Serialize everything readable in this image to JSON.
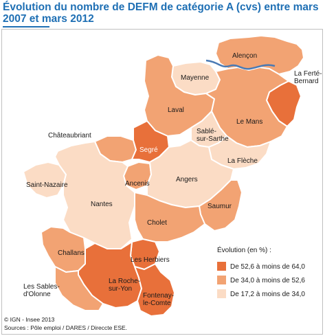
{
  "title": "Évolution du nombre de DEFM de catégorie A (cvs) entre mars 2007 et mars 2012",
  "colors": {
    "class_high": "#e8703a",
    "class_mid": "#f2a373",
    "class_low": "#fbdcc5",
    "border": "#ffffff",
    "river": "#4a7ab4",
    "title": "#1e6fb4"
  },
  "legend": {
    "title": "Évolution (en %) :",
    "items": [
      {
        "label": "De 52,6 à moins de 64,0",
        "color": "#e8703a"
      },
      {
        "label": "De 34,0 à moins de 52,6",
        "color": "#f2a373"
      },
      {
        "label": "De 17,2 à moins de 34,0",
        "color": "#fbdcc5"
      }
    ]
  },
  "zones": [
    {
      "name": "Alençon",
      "label": "Alençon",
      "class": "mid"
    },
    {
      "name": "Mayenne",
      "label": "Mayenne",
      "class": "low"
    },
    {
      "name": "La Ferté-Bernard",
      "label": "La Ferté-\nBernard",
      "class": "high"
    },
    {
      "name": "Laval",
      "label": "Laval",
      "class": "mid"
    },
    {
      "name": "Le Mans",
      "label": "Le Mans",
      "class": "mid"
    },
    {
      "name": "Sablé-sur-Sarthe",
      "label": "Sablé-\nsur-Sarthe",
      "class": "low"
    },
    {
      "name": "Châteaubriant",
      "label": "Châteaubriant",
      "class": "mid"
    },
    {
      "name": "Segré",
      "label": "Segré",
      "class": "high"
    },
    {
      "name": "La Flèche",
      "label": "La Flèche",
      "class": "low"
    },
    {
      "name": "Saint-Nazaire",
      "label": "Saint-Nazaire",
      "class": "low"
    },
    {
      "name": "Ancenis",
      "label": "Ancenis",
      "class": "mid"
    },
    {
      "name": "Angers",
      "label": "Angers",
      "class": "low"
    },
    {
      "name": "Nantes",
      "label": "Nantes",
      "class": "low"
    },
    {
      "name": "Saumur",
      "label": "Saumur",
      "class": "mid"
    },
    {
      "name": "Cholet",
      "label": "Cholet",
      "class": "mid"
    },
    {
      "name": "Challans",
      "label": "Challans",
      "class": "mid"
    },
    {
      "name": "Les Herbiers",
      "label": "Les Herbiers",
      "class": "high"
    },
    {
      "name": "La Roche-sur-Yon",
      "label": "La Roche-\nsur-Yon",
      "class": "high"
    },
    {
      "name": "Les Sables-d'Olonne",
      "label": "Les Sables-\nd'Olonne",
      "class": "mid"
    },
    {
      "name": "Fontenay-le-Comte",
      "label": "Fontenay-\nle-Comte",
      "class": "high"
    }
  ],
  "credits": {
    "line1": "© IGN - Insee 2013",
    "line2": "Sources : Pôle emploi / DARES / Direccte ESE."
  }
}
